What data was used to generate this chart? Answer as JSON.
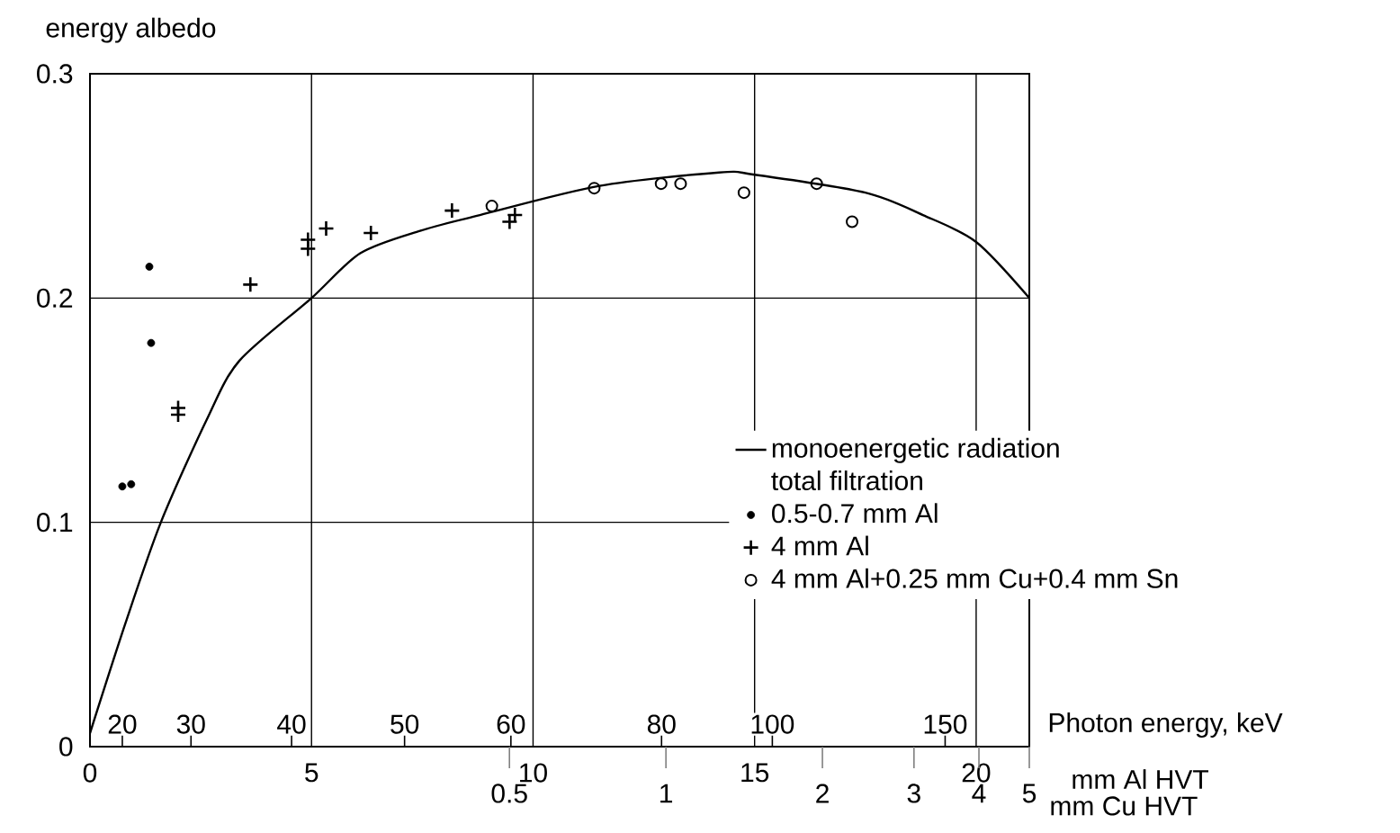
{
  "chart_data": {
    "type": "scatter",
    "ylabel": "energy albedo",
    "xlabel": "mm Al HVT",
    "legend_title": "total filtration",
    "xlim": [
      0,
      21.2
    ],
    "xticks": [
      0,
      5,
      10,
      15,
      20
    ],
    "ylim": [
      0,
      0.3
    ],
    "yticks": [
      0,
      0.1,
      0.2,
      0.3
    ],
    "grid": true,
    "legend": "bottom right",
    "x2label": "mm Cu HVT",
    "log": "x2",
    "x2lim": [
      0.078,
      5
    ],
    "x2ticks": [
      0.5,
      1,
      2,
      3,
      4,
      5
    ],
    "annotations": [
      "Photon energy, keV",
      {
        "text": "20",
        "x": 0.73,
        "y": 0.01
      },
      {
        "text": "30",
        "x": 2.28,
        "y": 0.01
      },
      {
        "text": "40",
        "x": 4.55,
        "y": 0.01
      },
      {
        "text": "50",
        "x": 7.1,
        "y": 0.01
      },
      {
        "text": "60",
        "x": 9.5,
        "y": 0.01
      },
      {
        "text": "80",
        "x": 12.9,
        "y": 0.01
      },
      {
        "text": "100",
        "x": 15.4,
        "y": 0.01
      },
      {
        "text": "150",
        "x": 19.3,
        "y": 0.01
      }
    ],
    "series": [
      {
        "name": "monoenergetic radiation",
        "type": "line",
        "color": "#000000",
        "marker": "none",
        "x": [
          0,
          0.8,
          1.6,
          2.64,
          3.37,
          5.0,
          6.1,
          7.45,
          8.8,
          11.5,
          14.2,
          15.0,
          17.5,
          18.8,
          20.0,
          21.2
        ],
        "values": [
          0.006,
          0.055,
          0.1,
          0.146,
          0.172,
          0.2,
          0.22,
          0.23,
          0.237,
          0.25,
          0.256,
          0.255,
          0.247,
          0.237,
          0.225,
          0.2
        ]
      },
      {
        "name": "0.5-0.7 mm Al",
        "color": "#000000",
        "marker": "dot",
        "x": [
          1.34,
          1.38,
          0.73,
          0.93
        ],
        "values": [
          0.214,
          0.18,
          0.116,
          0.117
        ]
      },
      {
        "name": "4 mm Al",
        "color": "#000000",
        "marker": "cross",
        "x": [
          1.99,
          1.99,
          3.62,
          4.92,
          4.92,
          5.33,
          6.34,
          8.17,
          9.47,
          9.59
        ],
        "values": [
          0.151,
          0.148,
          0.206,
          0.226,
          0.222,
          0.231,
          0.229,
          0.239,
          0.234,
          0.237
        ]
      },
      {
        "name": "4 mm Al+0.25 mm Cu+0.4 mm Sn",
        "color": "#000000",
        "marker": "circle",
        "x": [
          9.07,
          11.38,
          12.89,
          13.33,
          14.76,
          16.4,
          17.2
        ],
        "values": [
          0.241,
          0.249,
          0.251,
          0.251,
          0.247,
          0.251,
          0.234
        ]
      }
    ]
  }
}
